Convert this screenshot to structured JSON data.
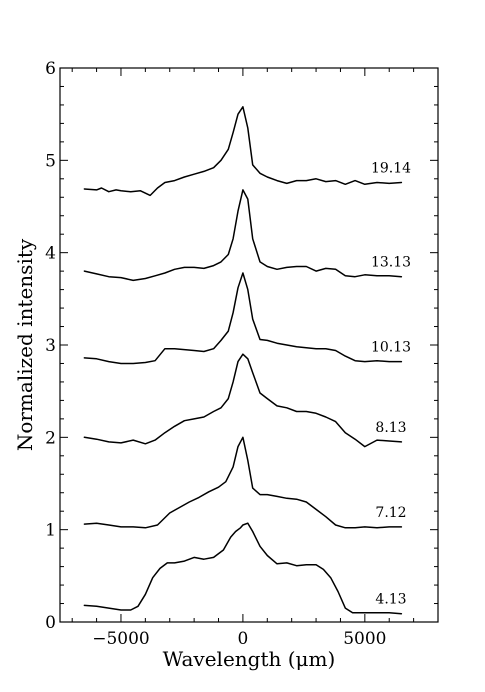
{
  "chart_data": {
    "type": "line",
    "title": "",
    "xlabel": "Wavelength (μm)",
    "ylabel": "Normalized intensity",
    "xlim": [
      -7500,
      8000
    ],
    "ylim": [
      0,
      6
    ],
    "xticks": [
      -5000,
      0,
      5000
    ],
    "xtick_labels": [
      "−5000",
      "0",
      "5000"
    ],
    "yticks": [
      0,
      1,
      2,
      3,
      4,
      5,
      6
    ],
    "ytick_labels": [
      "0",
      "1",
      "2",
      "3",
      "4",
      "5",
      "6"
    ],
    "legend": "none",
    "grid": false,
    "series": [
      {
        "name": "4.13",
        "x": [
          -6500,
          -6000,
          -5500,
          -5000,
          -4600,
          -4300,
          -4000,
          -3700,
          -3400,
          -3100,
          -2800,
          -2400,
          -2000,
          -1600,
          -1200,
          -800,
          -500,
          -300,
          -100,
          0,
          200,
          400,
          700,
          1000,
          1400,
          1800,
          2200,
          2600,
          3000,
          3300,
          3600,
          3900,
          4200,
          4500,
          5000,
          5500,
          6000,
          6500
        ],
        "y": [
          0.18,
          0.17,
          0.15,
          0.13,
          0.13,
          0.17,
          0.3,
          0.48,
          0.58,
          0.64,
          0.64,
          0.66,
          0.7,
          0.68,
          0.7,
          0.78,
          0.92,
          0.98,
          1.02,
          1.05,
          1.07,
          0.98,
          0.82,
          0.72,
          0.63,
          0.64,
          0.61,
          0.62,
          0.62,
          0.57,
          0.48,
          0.33,
          0.15,
          0.1,
          0.1,
          0.1,
          0.1,
          0.09
        ]
      },
      {
        "name": "7.12",
        "x": [
          -6500,
          -6000,
          -5500,
          -5000,
          -4500,
          -4000,
          -3500,
          -3000,
          -2600,
          -2200,
          -1800,
          -1400,
          -1000,
          -700,
          -400,
          -200,
          0,
          200,
          400,
          700,
          1000,
          1400,
          1800,
          2200,
          2600,
          3000,
          3400,
          3800,
          4200,
          4600,
          5000,
          5500,
          6000,
          6500
        ],
        "y": [
          1.06,
          1.07,
          1.05,
          1.03,
          1.03,
          1.02,
          1.05,
          1.18,
          1.24,
          1.3,
          1.35,
          1.41,
          1.46,
          1.52,
          1.68,
          1.9,
          2.0,
          1.75,
          1.45,
          1.38,
          1.38,
          1.36,
          1.34,
          1.33,
          1.3,
          1.22,
          1.14,
          1.05,
          1.02,
          1.02,
          1.03,
          1.02,
          1.03,
          1.03
        ]
      },
      {
        "name": "8.13",
        "x": [
          -6500,
          -6000,
          -5500,
          -5000,
          -4500,
          -4000,
          -3600,
          -3200,
          -2800,
          -2400,
          -2000,
          -1600,
          -1200,
          -900,
          -600,
          -400,
          -200,
          0,
          200,
          400,
          700,
          1000,
          1400,
          1800,
          2200,
          2600,
          3000,
          3400,
          3800,
          4200,
          4600,
          5000,
          5500,
          6000,
          6500
        ],
        "y": [
          2.0,
          1.98,
          1.95,
          1.94,
          1.97,
          1.93,
          1.97,
          2.05,
          2.12,
          2.18,
          2.2,
          2.22,
          2.28,
          2.32,
          2.42,
          2.6,
          2.82,
          2.9,
          2.85,
          2.7,
          2.48,
          2.42,
          2.34,
          2.32,
          2.28,
          2.28,
          2.26,
          2.22,
          2.17,
          2.05,
          1.98,
          1.9,
          1.97,
          1.96,
          1.95
        ]
      },
      {
        "name": "10.13",
        "x": [
          -6500,
          -6000,
          -5500,
          -5000,
          -4500,
          -4000,
          -3600,
          -3200,
          -2800,
          -2400,
          -2000,
          -1600,
          -1200,
          -900,
          -600,
          -400,
          -200,
          0,
          200,
          400,
          700,
          1000,
          1400,
          1800,
          2200,
          2600,
          3000,
          3400,
          3800,
          4200,
          4600,
          5000,
          5500,
          6000,
          6500
        ],
        "y": [
          2.86,
          2.85,
          2.82,
          2.8,
          2.8,
          2.81,
          2.83,
          2.96,
          2.96,
          2.95,
          2.94,
          2.93,
          2.96,
          3.05,
          3.15,
          3.35,
          3.62,
          3.78,
          3.6,
          3.28,
          3.06,
          3.05,
          3.02,
          3.0,
          2.98,
          2.97,
          2.96,
          2.96,
          2.94,
          2.88,
          2.83,
          2.82,
          2.83,
          2.82,
          2.82
        ]
      },
      {
        "name": "13.13",
        "x": [
          -6500,
          -6000,
          -5500,
          -5000,
          -4500,
          -4000,
          -3600,
          -3200,
          -2800,
          -2400,
          -2000,
          -1600,
          -1200,
          -900,
          -600,
          -400,
          -200,
          0,
          200,
          400,
          700,
          1000,
          1400,
          1800,
          2200,
          2600,
          3000,
          3400,
          3800,
          4200,
          4600,
          5000,
          5500,
          6000,
          6500
        ],
        "y": [
          3.8,
          3.77,
          3.74,
          3.73,
          3.7,
          3.72,
          3.75,
          3.78,
          3.82,
          3.84,
          3.84,
          3.83,
          3.86,
          3.9,
          3.98,
          4.15,
          4.45,
          4.68,
          4.58,
          4.15,
          3.9,
          3.85,
          3.82,
          3.84,
          3.85,
          3.85,
          3.8,
          3.83,
          3.82,
          3.75,
          3.74,
          3.76,
          3.75,
          3.75,
          3.74
        ]
      },
      {
        "name": "19.14",
        "x": [
          -6500,
          -6000,
          -5800,
          -5500,
          -5200,
          -5000,
          -4600,
          -4200,
          -3800,
          -3500,
          -3200,
          -2800,
          -2400,
          -2000,
          -1600,
          -1200,
          -900,
          -600,
          -400,
          -200,
          0,
          200,
          400,
          700,
          1000,
          1400,
          1800,
          2200,
          2600,
          3000,
          3400,
          3800,
          4200,
          4600,
          5000,
          5500,
          6000,
          6500
        ],
        "y": [
          4.69,
          4.68,
          4.7,
          4.66,
          4.68,
          4.67,
          4.66,
          4.67,
          4.62,
          4.7,
          4.76,
          4.78,
          4.82,
          4.85,
          4.88,
          4.92,
          5.0,
          5.12,
          5.3,
          5.5,
          5.58,
          5.35,
          4.95,
          4.86,
          4.82,
          4.78,
          4.75,
          4.78,
          4.78,
          4.8,
          4.77,
          4.78,
          4.74,
          4.78,
          4.74,
          4.76,
          4.75,
          4.76
        ]
      }
    ]
  }
}
